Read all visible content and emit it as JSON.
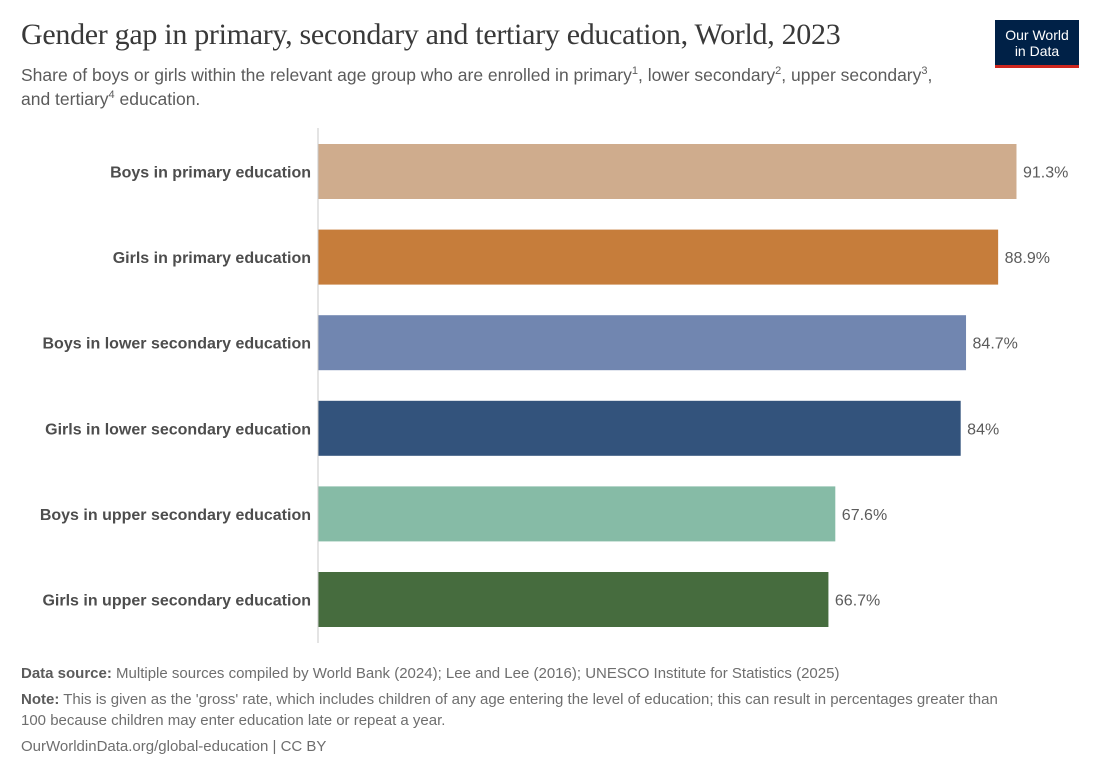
{
  "header": {
    "title": "Gender gap in primary, secondary and tertiary education, World, 2023",
    "subtitle_parts": [
      "Share of boys or girls within the relevant age group who are enrolled in primary",
      "1",
      ", lower secondary",
      "2",
      ", upper secondary",
      "3",
      ", and tertiary",
      "4",
      " education."
    ]
  },
  "logo": {
    "line1": "Our World",
    "line2": "in Data",
    "bg_color": "#002147",
    "accent_color": "#ce261e"
  },
  "chart_data": {
    "type": "bar",
    "orientation": "horizontal",
    "title": "Gender gap in primary, secondary and tertiary education, World, 2023",
    "unit": "%",
    "xlim": [
      0,
      100
    ],
    "grid": false,
    "categories": [
      "Boys in primary education",
      "Girls in primary education",
      "Boys in lower secondary education",
      "Girls in lower secondary education",
      "Boys in upper secondary education",
      "Girls in upper secondary education"
    ],
    "values": [
      91.3,
      88.9,
      84.7,
      84,
      67.6,
      66.7
    ],
    "value_labels": [
      "91.3%",
      "88.9%",
      "84.7%",
      "84%",
      "67.6%",
      "66.7%"
    ],
    "colors": [
      "#cfac8d",
      "#c67d3b",
      "#7186b0",
      "#33537c",
      "#86bba6",
      "#466c3e"
    ]
  },
  "footer": {
    "source_label": "Data source:",
    "source_text": " Multiple sources compiled by World Bank (2024); Lee and Lee (2016); UNESCO Institute for Statistics (2025)",
    "note_label": "Note:",
    "note_text": " This is given as the 'gross' rate, which includes children of any age entering the level of education; this can result in percentages greater than 100 because children may enter education late or repeat a year.",
    "url": "OurWorldinData.org/global-education | CC BY"
  }
}
